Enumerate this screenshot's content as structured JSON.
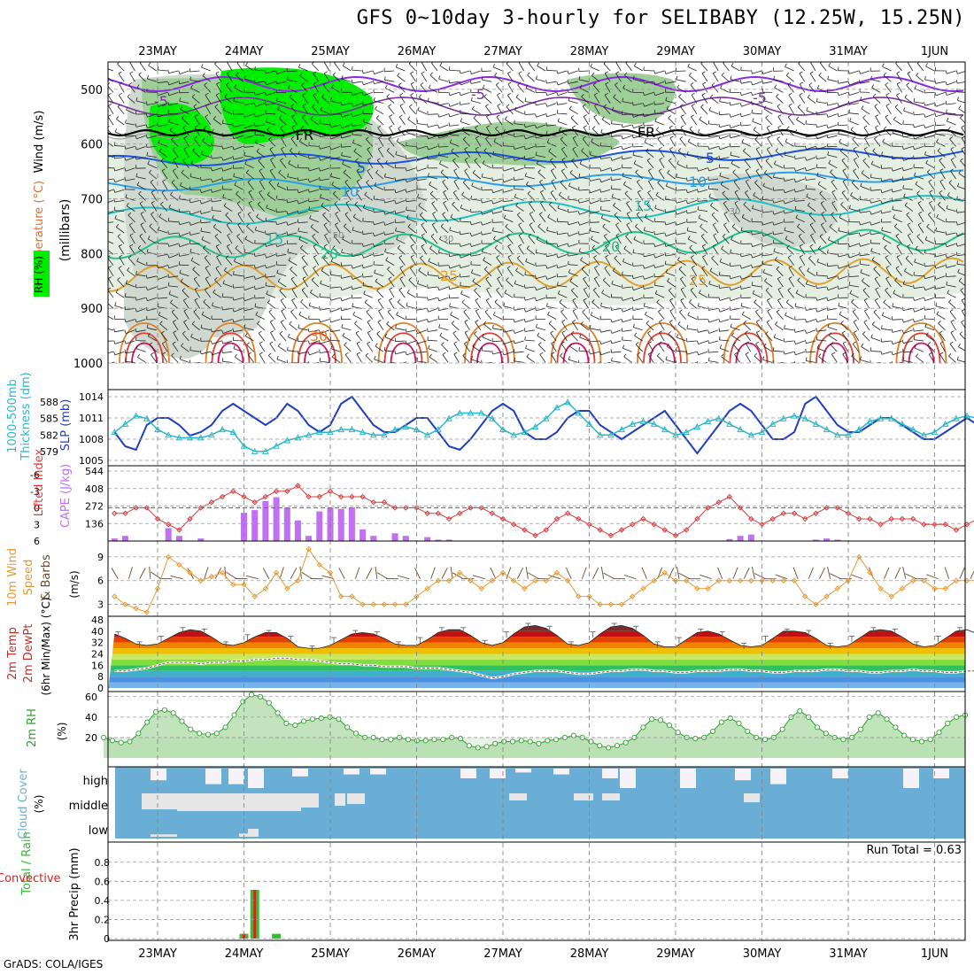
{
  "title": "GFS 0~10day 3-hourly for SELIBABY (12.25W, 15.25N)",
  "footer": "GrADS: COLA/IGES",
  "run_total": "Run Total = 0.63",
  "date_labels": [
    "23MAY",
    "24MAY",
    "25MAY",
    "26MAY",
    "27MAY",
    "28MAY",
    "29MAY",
    "30MAY",
    "31MAY",
    "1JUN"
  ],
  "panels": {
    "wind_profile": {
      "ylabels": [
        "Temperature (°C)",
        "Wind (m/s)",
        "RH (%)",
        "(millibars)"
      ],
      "pressure_ticks": [
        "500",
        "600",
        "700",
        "800",
        "900",
        "1000"
      ],
      "contour_labels": {
        "temp_minus5": "-5",
        "fr": "FR",
        "t5": "5",
        "t10": "10",
        "t15": "15",
        "t20": "20",
        "t25": "25",
        "t30": "30",
        "rh50": "50",
        "rh30": "30"
      }
    },
    "thickness_slp": {
      "ylabels": [
        "1000-500mb",
        "Thickness (dm)",
        "SLP (mb)"
      ],
      "thickness_ticks": [
        "588",
        "585",
        "582",
        "579"
      ],
      "slp_ticks": [
        "1014",
        "1011",
        "1008",
        "1005"
      ]
    },
    "li_cape": {
      "ylabels": [
        "Lifted Index",
        "CAPE (J/kg)"
      ],
      "li_ticks": [
        "-6",
        "-3",
        "0",
        "3",
        "6"
      ],
      "cape_ticks": [
        "544",
        "408",
        "272",
        "136"
      ]
    },
    "wind10m": {
      "ylabels": [
        "10m Wind",
        "Speed",
        "& Barbs",
        "(m/s)"
      ],
      "ticks": [
        "9",
        "6",
        "3"
      ]
    },
    "temp2m": {
      "ylabels": [
        "2m Temp",
        "2m DewPt",
        "(6hr Min/Max) (°C)"
      ],
      "ticks": [
        "48",
        "40",
        "32",
        "24",
        "16",
        "8",
        "0"
      ]
    },
    "rh2m": {
      "ylabels": [
        "2m RH",
        "(%)"
      ],
      "ticks": [
        "60",
        "40",
        "20"
      ]
    },
    "cloud": {
      "ylabels": [
        "Cloud Cover",
        "(%)"
      ],
      "levels": [
        "high",
        "middle",
        "low"
      ]
    },
    "precip": {
      "ylabels": [
        "Total / Rain",
        "Convective",
        "3hr Precip (mm)"
      ],
      "ticks": [
        "0.8",
        "0.6",
        "0.4",
        "0.2",
        "0"
      ]
    }
  },
  "colors": {
    "slp": "#1f3fc0",
    "thickness": "#2ab8c8",
    "li": "#d84040",
    "cape": "#c070f0",
    "wind10m": "#e89a30",
    "rh2m": "#30a030",
    "cloud": "#6aaed6",
    "precip_total": "#30c030",
    "precip_conv": "#e02020"
  },
  "chart_data": [
    {
      "type": "line",
      "title": "1000-500mb Thickness (dm) & SLP (mb)",
      "x_start": "22MAY 12Z",
      "x_step_hours": 3,
      "series": [
        {
          "name": "SLP (mb)",
          "values": [
            1009,
            1007,
            1006.5,
            1010,
            1011,
            1011,
            1010,
            1008.5,
            1009,
            1010,
            1012,
            1013,
            1012,
            1011,
            1010,
            1011,
            1013,
            1012,
            1010,
            1009,
            1010,
            1013,
            1014,
            1012,
            1010,
            1009,
            1009,
            1010,
            1011,
            1011,
            1009,
            1007,
            1006.5,
            1008,
            1010,
            1012,
            1013,
            1012,
            1009,
            1008,
            1008,
            1009,
            1011,
            1012,
            1012,
            1010,
            1009,
            1008,
            1009,
            1010,
            1011,
            1012,
            1010,
            1008,
            1006,
            1008,
            1010,
            1012,
            1013,
            1012,
            1010,
            1008,
            1008,
            1009,
            1013,
            1014,
            1012,
            1010,
            1009,
            1009,
            1010,
            1011,
            1011,
            1010,
            1009,
            1008,
            1008,
            1009,
            1010,
            1011,
            1010,
            1009,
            1008,
            1009
          ]
        },
        {
          "name": "1000-500mb Thickness (dm)",
          "values": [
            582.5,
            584,
            585.5,
            585,
            583,
            582,
            581.5,
            581.5,
            581.5,
            582,
            583,
            582.5,
            580,
            579,
            579,
            580,
            581,
            581.5,
            582,
            582.5,
            582.5,
            583,
            583,
            582.5,
            582,
            582,
            583,
            583.5,
            583,
            582,
            583,
            585,
            586,
            586,
            586,
            585,
            583,
            582,
            582.5,
            583.5,
            585,
            587,
            588,
            586,
            584,
            582,
            582,
            583,
            584,
            584.5,
            584,
            583,
            582,
            582.5,
            583.5,
            584.5,
            585,
            584,
            583,
            582,
            582.5,
            584,
            585,
            585.5,
            585,
            584,
            583,
            582,
            582,
            583,
            584.5,
            585,
            585,
            584,
            583,
            582,
            582.5,
            584,
            585,
            585.5,
            585,
            583.5,
            582.5,
            582.5
          ]
        }
      ],
      "ylim_slp": [
        1005,
        1014
      ],
      "ylim_thickness": [
        578,
        589
      ]
    },
    {
      "type": "bar",
      "title": "Lifted Index & CAPE (J/kg)",
      "x_start": "22MAY 12Z",
      "x_step_hours": 3,
      "series": [
        {
          "name": "CAPE (J/kg)",
          "values": [
            20,
            40,
            0,
            0,
            0,
            100,
            40,
            0,
            20,
            0,
            0,
            0,
            220,
            240,
            310,
            340,
            260,
            160,
            40,
            230,
            260,
            250,
            260,
            90,
            40,
            0,
            60,
            40,
            0,
            30,
            10,
            10,
            0,
            0,
            0,
            0,
            0,
            0,
            0,
            0,
            0,
            0,
            0,
            0,
            0,
            0,
            0,
            0,
            0,
            0,
            0,
            0,
            0,
            0,
            0,
            0,
            0,
            15,
            40,
            50,
            0,
            0,
            0,
            0,
            0,
            10,
            20,
            10,
            0,
            0,
            0,
            0,
            0,
            0,
            0,
            0,
            0,
            0,
            0,
            0,
            0,
            0,
            0,
            0
          ]
        },
        {
          "name": "Lifted Index",
          "values": [
            1,
            1,
            0,
            0,
            2,
            3,
            4,
            2,
            0,
            -1,
            -2,
            -3,
            -2,
            -1,
            -2,
            -3,
            -3,
            -4,
            -2,
            -2,
            -3,
            -2,
            -2,
            -2,
            -1,
            -1,
            0,
            0,
            0,
            1,
            1,
            2,
            1,
            0,
            0,
            1,
            2,
            3,
            4,
            5,
            4,
            2,
            1,
            2,
            3,
            4,
            5,
            4,
            3,
            2,
            3,
            4,
            5,
            4,
            2,
            0,
            -1,
            -2,
            0,
            2,
            3,
            2,
            1,
            1,
            2,
            1,
            0,
            0,
            1,
            2,
            2,
            3,
            2,
            2,
            2,
            3,
            3,
            3,
            4,
            3,
            2,
            3,
            4,
            5
          ]
        }
      ],
      "ylim_cape": [
        0,
        544
      ],
      "ylim_li": [
        6,
        -6
      ]
    },
    {
      "type": "line",
      "title": "10m Wind Speed (m/s)",
      "x_start": "22MAY 12Z",
      "x_step_hours": 3,
      "series": [
        {
          "name": "Speed",
          "values": [
            4,
            3,
            2.5,
            2,
            5,
            9,
            8,
            7,
            6,
            6.5,
            7,
            5.5,
            5.5,
            4,
            5,
            7,
            5,
            6,
            10,
            8,
            7,
            4,
            4,
            3,
            3,
            3,
            3,
            3,
            4,
            5,
            6,
            6,
            7,
            6,
            5,
            6,
            7,
            6,
            5,
            6,
            6,
            7,
            6,
            4,
            4,
            3,
            3,
            3,
            4,
            5,
            6,
            7,
            6,
            6,
            5,
            5,
            6,
            6,
            6,
            6,
            6,
            6,
            6,
            6,
            4,
            3,
            4,
            5,
            6,
            9,
            7,
            5,
            4,
            5,
            6,
            6,
            5,
            5,
            6,
            6,
            6,
            5,
            5,
            4,
            4,
            5,
            9
          ]
        }
      ],
      "ylim": [
        1.5,
        11
      ]
    },
    {
      "type": "area",
      "title": "2m Temp / 2m DewPt (6hr Min/Max) (°C)",
      "x_start": "22MAY 12Z",
      "x_step_hours": 3,
      "series": [
        {
          "name": "2m Temp",
          "values": [
            38,
            35,
            31,
            30,
            31,
            35,
            39,
            41,
            40,
            36,
            31,
            30,
            32,
            36,
            39,
            39,
            35,
            29,
            28,
            28,
            30,
            34,
            38,
            39,
            38,
            35,
            31,
            30,
            30,
            34,
            39,
            41,
            41,
            37,
            32,
            30,
            32,
            38,
            43,
            44,
            42,
            37,
            31,
            30,
            32,
            38,
            43,
            44,
            42,
            37,
            31,
            29,
            29,
            34,
            39,
            40,
            38,
            34,
            30,
            29,
            30,
            35,
            40,
            40,
            39,
            35,
            30,
            29,
            30,
            35,
            40,
            41,
            40,
            36,
            31,
            29,
            30,
            35,
            40,
            41,
            38,
            34,
            30,
            29
          ]
        },
        {
          "name": "2m DewPt",
          "values": [
            12,
            12,
            13,
            14,
            16,
            18,
            18,
            18,
            17,
            18,
            18,
            19,
            19,
            20,
            20,
            21,
            21,
            20,
            20,
            19,
            18,
            17,
            17,
            16,
            16,
            15,
            15,
            15,
            14,
            14,
            14,
            13,
            12,
            11,
            9,
            7,
            8,
            10,
            11,
            12,
            12,
            12,
            11,
            10,
            10,
            11,
            12,
            12,
            13,
            13,
            12,
            12,
            11,
            11,
            12,
            12,
            12,
            13,
            13,
            12,
            12,
            11,
            11,
            12,
            12,
            12,
            13,
            13,
            12,
            12,
            11,
            11,
            12,
            12,
            13,
            12,
            12,
            11,
            11,
            12,
            12,
            13,
            13,
            13
          ]
        }
      ],
      "ylim": [
        0,
        48
      ]
    },
    {
      "type": "line",
      "title": "2m RH (%)",
      "x_start": "22MAY 12Z",
      "x_step_hours": 3,
      "series": [
        {
          "name": "2m RH",
          "values": [
            20,
            17,
            15,
            16,
            24,
            35,
            45,
            47,
            44,
            36,
            28,
            24,
            23,
            24,
            30,
            42,
            55,
            62,
            60,
            54,
            44,
            34,
            32,
            36,
            38,
            39,
            40,
            38,
            30,
            24,
            20,
            20,
            18,
            18,
            20,
            18,
            17,
            17,
            18,
            18,
            20,
            19,
            12,
            10,
            11,
            14,
            16,
            16,
            17,
            16,
            14,
            17,
            18,
            20,
            22,
            20,
            16,
            12,
            10,
            12,
            15,
            20,
            30,
            38,
            37,
            32,
            25,
            20,
            19,
            20,
            26,
            35,
            39,
            34,
            26,
            20,
            18,
            20,
            28,
            40,
            46,
            40,
            30,
            24,
            20,
            18,
            20,
            28,
            40,
            44,
            38,
            30,
            22,
            18,
            16,
            18,
            25,
            34,
            40,
            42
          ]
        }
      ],
      "ylim": [
        0,
        65
      ]
    },
    {
      "type": "bar",
      "title": "3hr Precip (mm)",
      "categories": [
        "23MAY 21Z",
        "24MAY 00Z",
        "24MAY 06Z"
      ],
      "series": [
        {
          "name": "Total / Rain",
          "values": [
            0.05,
            0.51,
            0.05
          ]
        },
        {
          "name": "Convective",
          "values": [
            0.05,
            0.51,
            0.0
          ]
        }
      ],
      "ylim": [
        0,
        0.9
      ]
    }
  ]
}
